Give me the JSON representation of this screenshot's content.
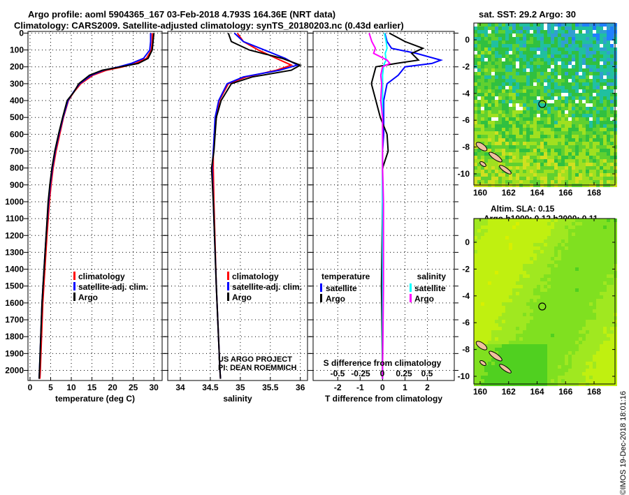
{
  "title_line1": "Argo profile: aoml 5904365_167 03-Feb-2018 4.793S 164.36E (NRT data)",
  "title_line2": "Climatology: CARS2009. Satellite-adjusted climatology: synTS_20180203.nc (0.43d earlier)",
  "credit": "©IMOS 19-Dec-2018 18:01:16",
  "colors": {
    "clim": "#ff0000",
    "sat": "#0000ff",
    "argo": "#000000",
    "sat_s": "#00ffff",
    "argo_s": "#ff00ff"
  },
  "chart_data": [
    {
      "type": "line",
      "xlabel": "temperature (deg C)",
      "ylabel": "",
      "xlim": [
        -0.5,
        32
      ],
      "ylim": [
        2060,
        -10
      ],
      "xticks": [
        0,
        5,
        10,
        15,
        20,
        25,
        30
      ],
      "yticks": [
        0,
        100,
        200,
        300,
        400,
        500,
        600,
        700,
        800,
        900,
        1000,
        1100,
        1200,
        1300,
        1400,
        1500,
        1600,
        1700,
        1800,
        1900,
        2000
      ],
      "legend": [
        "climatology",
        "satellite-adj. clim.",
        "Argo"
      ],
      "legend_position": "bottom-right",
      "depth": [
        0,
        50,
        100,
        150,
        180,
        200,
        220,
        250,
        300,
        350,
        400,
        500,
        600,
        700,
        800,
        900,
        1000,
        1200,
        1400,
        1600,
        1800,
        2000,
        2050
      ],
      "series": [
        {
          "name": "climatology",
          "values": [
            29.6,
            29.6,
            29.4,
            28.2,
            25.5,
            22.5,
            18.5,
            15.2,
            12.3,
            10.6,
            9.3,
            8.1,
            7.2,
            6.3,
            5.6,
            5.1,
            4.7,
            4.1,
            3.6,
            3.1,
            2.8,
            2.5,
            2.4
          ]
        },
        {
          "name": "satellite-adj. clim.",
          "values": [
            29.2,
            29.2,
            29.0,
            27.5,
            24.5,
            21.5,
            17.8,
            14.8,
            12.0,
            10.5,
            9.2,
            8.0,
            7.0,
            6.1,
            5.4,
            4.9,
            4.5,
            3.9,
            3.4,
            2.9,
            2.6,
            2.3,
            2.2
          ]
        },
        {
          "name": "Argo",
          "values": [
            30.0,
            29.8,
            29.6,
            28.6,
            26.2,
            22.0,
            17.5,
            14.4,
            11.8,
            10.6,
            9.0,
            7.9,
            6.9,
            6.0,
            5.3,
            4.8,
            4.4,
            3.9,
            3.4,
            2.9,
            2.6,
            2.3,
            2.2
          ]
        }
      ]
    },
    {
      "type": "line",
      "xlabel": "salinity",
      "xlim": [
        33.79,
        36.12
      ],
      "xticks": [
        34,
        34.5,
        35,
        35.5,
        36
      ],
      "legend": [
        "climatology",
        "satellite-adj. clim.",
        "Argo"
      ],
      "legend_position": "bottom-right",
      "annotation": [
        "US ARGO PROJECT",
        "PI: DEAN ROEMMICH"
      ],
      "depth": [
        0,
        50,
        100,
        150,
        190,
        220,
        260,
        300,
        400,
        500,
        700,
        800,
        1000,
        1500,
        2000,
        2050
      ],
      "series": [
        {
          "name": "climatology",
          "values": [
            34.95,
            35.05,
            35.3,
            35.6,
            35.85,
            35.6,
            35.1,
            34.8,
            34.65,
            34.6,
            34.55,
            34.55,
            34.56,
            34.6,
            34.66,
            34.67
          ]
        },
        {
          "name": "satellite-adj. clim.",
          "values": [
            34.9,
            35.05,
            35.4,
            35.75,
            35.95,
            35.65,
            35.05,
            34.78,
            34.64,
            34.58,
            34.55,
            34.53,
            34.55,
            34.6,
            34.66,
            34.67
          ]
        },
        {
          "name": "Argo",
          "values": [
            34.8,
            34.85,
            35.15,
            35.7,
            36.0,
            35.85,
            35.2,
            34.85,
            34.68,
            34.6,
            34.56,
            34.52,
            34.55,
            34.6,
            34.66,
            34.67
          ]
        }
      ]
    },
    {
      "type": "line",
      "xlabel": "T difference from climatology",
      "xlim": [
        -3.1,
        3.2
      ],
      "xticks": [
        -2,
        -1,
        0,
        1,
        2
      ],
      "s_axis_label": "S difference from climatology",
      "s_xticks": [
        "-0.5",
        "-0.25",
        "0",
        "0.25",
        "0.5"
      ],
      "legend_t": {
        "title": "temperature",
        "items": [
          "satellite",
          "Argo"
        ]
      },
      "legend_s": {
        "title": "salinity",
        "items": [
          "satellite",
          "Argo"
        ]
      },
      "depth": [
        0,
        50,
        90,
        120,
        160,
        180,
        200,
        250,
        300,
        400,
        500,
        600,
        700,
        800,
        1000,
        1500,
        2000,
        2050
      ],
      "series": [
        {
          "name": "T satellite",
          "values": [
            0.1,
            0.2,
            0.4,
            1.5,
            2.6,
            2.2,
            1.0,
            0.7,
            0.2,
            0.05,
            0.05,
            0.05,
            0.0,
            0.0,
            0.0,
            0.0,
            0.0,
            0.0
          ]
        },
        {
          "name": "T Argo",
          "values": [
            0.3,
            1.0,
            1.8,
            1.3,
            1.6,
            0.6,
            -0.3,
            -0.4,
            -0.5,
            -0.3,
            -0.1,
            0.2,
            0.25,
            0.0,
            0.0,
            -0.05,
            0.0,
            0.0
          ]
        },
        {
          "name": "S satellite",
          "values": [
            0.02,
            0.04,
            0.05,
            0.03,
            0.04,
            0.02,
            0.01,
            0.0,
            0.0,
            0.0,
            0.0,
            0.0,
            0.0,
            0.0,
            0.0,
            0.0,
            0.0,
            0.0
          ]
        },
        {
          "name": "S Argo",
          "values": [
            -0.15,
            -0.12,
            -0.08,
            -0.1,
            0.05,
            0.08,
            0.0,
            -0.02,
            -0.01,
            -0.02,
            0.0,
            0.0,
            0.0,
            0.0,
            0.01,
            0.01,
            0.0,
            0.0
          ]
        }
      ]
    },
    {
      "type": "heatmap",
      "title": "sat. SST: 29.2 Argo: 30",
      "xticks": [
        160,
        162,
        164,
        166,
        168
      ],
      "yticks": [
        0,
        -2,
        -4,
        -6,
        -8,
        -10
      ],
      "xlim": [
        159.6,
        169.5
      ],
      "ylim": [
        -11,
        1.2
      ],
      "marker": [
        164.36,
        -4.793
      ]
    },
    {
      "type": "heatmap",
      "title_line1": "Altim. SLA: 0.15",
      "title_line2": "Argo h1000: 0.12 h2000: 0.11",
      "xticks": [
        160,
        162,
        164,
        166,
        168
      ],
      "yticks": [
        0,
        -2,
        -4,
        -6,
        -8,
        -10
      ],
      "xlim": [
        159.6,
        169.5
      ],
      "ylim": [
        -11,
        1.2
      ],
      "marker": [
        164.36,
        -4.793
      ]
    }
  ]
}
